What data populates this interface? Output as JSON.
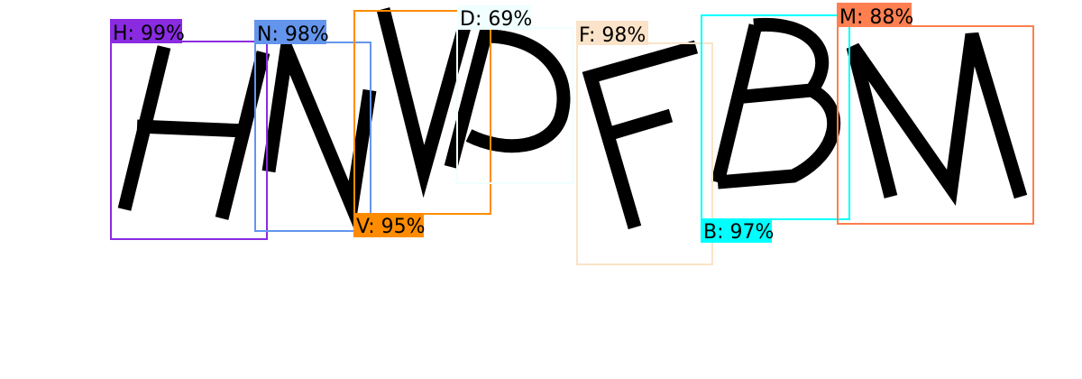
{
  "captcha": {
    "characters": [
      {
        "letter": "H",
        "confidence": "99%"
      },
      {
        "letter": "N",
        "confidence": "98%"
      },
      {
        "letter": "V",
        "confidence": "95%"
      },
      {
        "letter": "D",
        "confidence": "69%"
      },
      {
        "letter": "F",
        "confidence": "98%"
      },
      {
        "letter": "B",
        "confidence": "97%"
      },
      {
        "letter": "M",
        "confidence": "88%"
      }
    ]
  },
  "detections": [
    {
      "label": "H: 99%",
      "color": "#8a2be2"
    },
    {
      "label": "N: 98%",
      "color": "#6495ed"
    },
    {
      "label": "V: 95%",
      "color": "#ff8c00"
    },
    {
      "label": "D: 69%",
      "color": "#f0ffff"
    },
    {
      "label": "F: 98%",
      "color": "#fae3c8"
    },
    {
      "label": "B: 97%",
      "color": "#00ffff"
    },
    {
      "label": "M: 88%",
      "color": "#ff7f50"
    }
  ]
}
